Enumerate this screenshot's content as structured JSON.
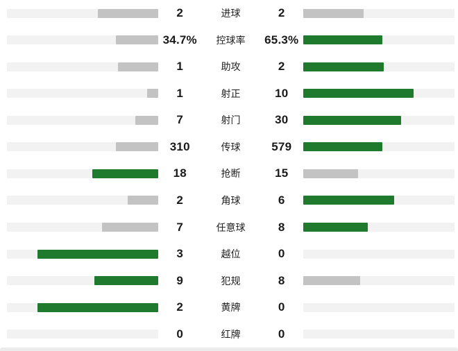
{
  "chart_data": {
    "type": "bar",
    "layout": "horizontal-comparison",
    "title": "",
    "legend_position": "none",
    "grid": false,
    "bar_scale": 0.8,
    "colors": {
      "leader_bar": "#1f7a2d",
      "trail_bar": "#c3c3c3",
      "track": "#f2f2f2",
      "text": "#1a1a1a"
    },
    "rows": [
      {
        "label": "进球",
        "home_display": "2",
        "away_display": "2",
        "home": 2,
        "away": 2
      },
      {
        "label": "控球率",
        "home_display": "34.7%",
        "away_display": "65.3%",
        "home": 34.7,
        "away": 65.3
      },
      {
        "label": "助攻",
        "home_display": "1",
        "away_display": "2",
        "home": 1,
        "away": 2
      },
      {
        "label": "射正",
        "home_display": "1",
        "away_display": "10",
        "home": 1,
        "away": 10
      },
      {
        "label": "射门",
        "home_display": "7",
        "away_display": "30",
        "home": 7,
        "away": 30
      },
      {
        "label": "传球",
        "home_display": "310",
        "away_display": "579",
        "home": 310,
        "away": 579
      },
      {
        "label": "抢断",
        "home_display": "18",
        "away_display": "15",
        "home": 18,
        "away": 15
      },
      {
        "label": "角球",
        "home_display": "2",
        "away_display": "6",
        "home": 2,
        "away": 6
      },
      {
        "label": "任意球",
        "home_display": "7",
        "away_display": "8",
        "home": 7,
        "away": 8
      },
      {
        "label": "越位",
        "home_display": "3",
        "away_display": "0",
        "home": 3,
        "away": 0
      },
      {
        "label": "犯规",
        "home_display": "9",
        "away_display": "8",
        "home": 9,
        "away": 8
      },
      {
        "label": "黄牌",
        "home_display": "2",
        "away_display": "0",
        "home": 2,
        "away": 0
      },
      {
        "label": "红牌",
        "home_display": "0",
        "away_display": "0",
        "home": 0,
        "away": 0
      }
    ]
  }
}
